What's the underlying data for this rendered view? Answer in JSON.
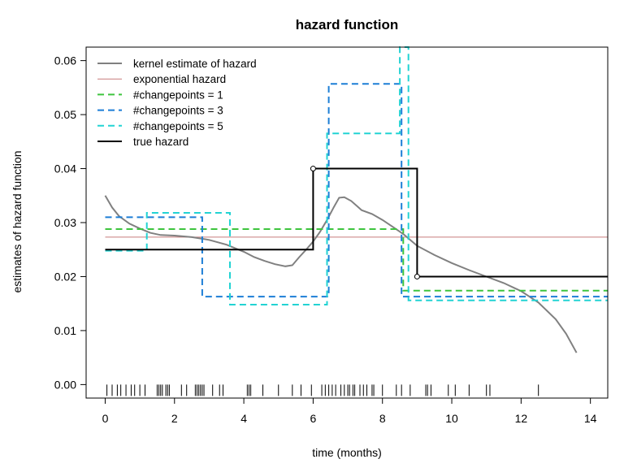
{
  "chart_data": {
    "type": "line",
    "title": "hazard function",
    "xlabel": "time (months)",
    "ylabel": "estimates of hazard function",
    "xlim": [
      -0.55,
      14.5
    ],
    "ylim": [
      -0.0025,
      0.0625
    ],
    "x_ticks": [
      0,
      2,
      4,
      6,
      8,
      10,
      12,
      14
    ],
    "x_tick_labels": [
      "0",
      "2",
      "4",
      "6",
      "8",
      "10",
      "12",
      "14"
    ],
    "y_ticks": [
      0,
      0.01,
      0.02,
      0.03,
      0.04,
      0.05,
      0.06
    ],
    "y_tick_labels": [
      "0.00",
      "0.01",
      "0.02",
      "0.03",
      "0.04",
      "0.05",
      "0.06"
    ],
    "grid": false,
    "legend_position": "top-left",
    "series": [
      {
        "name": "kernel estimate of hazard",
        "color": "#808080",
        "style": "solid",
        "x": [
          0.0,
          0.2,
          0.4,
          0.7,
          1.0,
          1.3,
          1.6,
          2.0,
          2.5,
          3.0,
          3.5,
          4.0,
          4.3,
          4.6,
          4.9,
          5.2,
          5.4,
          5.6,
          5.8,
          6.0,
          6.2,
          6.4,
          6.6,
          6.75,
          6.9,
          7.1,
          7.4,
          7.7,
          8.0,
          8.3,
          8.6,
          9.0,
          9.5,
          10.0,
          10.5,
          11.0,
          11.5,
          12.0,
          12.5,
          13.0,
          13.3,
          13.6
        ],
        "y": [
          0.035,
          0.0328,
          0.0312,
          0.0298,
          0.0289,
          0.0281,
          0.0277,
          0.0276,
          0.0273,
          0.0268,
          0.0259,
          0.0246,
          0.0236,
          0.0229,
          0.0223,
          0.0219,
          0.0221,
          0.0236,
          0.025,
          0.0265,
          0.0283,
          0.0305,
          0.0329,
          0.0346,
          0.0347,
          0.034,
          0.0323,
          0.0316,
          0.0305,
          0.0292,
          0.0279,
          0.0257,
          0.024,
          0.0225,
          0.0212,
          0.02,
          0.0188,
          0.0173,
          0.0152,
          0.0121,
          0.0094,
          0.0059
        ]
      },
      {
        "name": "exponential hazard",
        "color": "#c77b7b",
        "style": "solid",
        "x": [
          0.0,
          14.5
        ],
        "y": [
          0.0273,
          0.0273
        ]
      },
      {
        "name": "#changepoints = 1",
        "color": "#3ec43e",
        "style": "dashed",
        "x": [
          0.0,
          8.6,
          8.6,
          14.5
        ],
        "y": [
          0.0288,
          0.0288,
          0.0174,
          0.0174
        ]
      },
      {
        "name": "#changepoints = 3",
        "color": "#1c7ed6",
        "style": "dashed",
        "x": [
          0.0,
          2.8,
          2.8,
          6.45,
          6.45,
          8.55,
          8.55,
          14.5
        ],
        "y": [
          0.031,
          0.031,
          0.0163,
          0.0163,
          0.0557,
          0.0557,
          0.0163,
          0.0163
        ]
      },
      {
        "name": "#changepoints = 5",
        "color": "#22d3d3",
        "style": "dashed",
        "x": [
          0.0,
          1.2,
          1.2,
          3.6,
          3.6,
          6.4,
          6.4,
          8.5,
          8.5,
          8.75,
          8.75,
          14.5
        ],
        "y": [
          0.0248,
          0.0248,
          0.0318,
          0.0318,
          0.0148,
          0.0148,
          0.0465,
          0.0465,
          0.0625,
          0.0625,
          0.0156,
          0.0156
        ]
      },
      {
        "name": "true hazard",
        "color": "#000000",
        "style": "solid",
        "x": [
          0.0,
          6.0,
          6.0,
          9.0,
          9.0,
          14.5
        ],
        "y": [
          0.025,
          0.025,
          0.04,
          0.04,
          0.02,
          0.02
        ]
      }
    ],
    "points": [
      {
        "x": 6.0,
        "y": 0.04
      },
      {
        "x": 9.0,
        "y": 0.02
      }
    ],
    "rug": [
      0.05,
      0.2,
      0.35,
      0.45,
      0.6,
      0.75,
      0.85,
      1.0,
      1.15,
      1.5,
      1.55,
      1.6,
      1.65,
      1.75,
      1.8,
      1.85,
      2.2,
      2.35,
      2.6,
      2.65,
      2.7,
      2.75,
      2.8,
      2.85,
      3.1,
      3.3,
      3.4,
      4.1,
      4.15,
      4.2,
      4.55,
      5.0,
      5.4,
      5.65,
      5.95,
      6.25,
      6.35,
      6.45,
      6.55,
      6.65,
      6.8,
      6.9,
      7.0,
      7.05,
      7.15,
      7.2,
      7.35,
      7.45,
      7.55,
      7.7,
      7.75,
      8.0,
      8.4,
      8.55,
      8.8,
      9.25,
      9.3,
      9.4,
      9.9,
      10.1,
      10.5,
      11.0,
      11.1,
      12.5
    ]
  }
}
